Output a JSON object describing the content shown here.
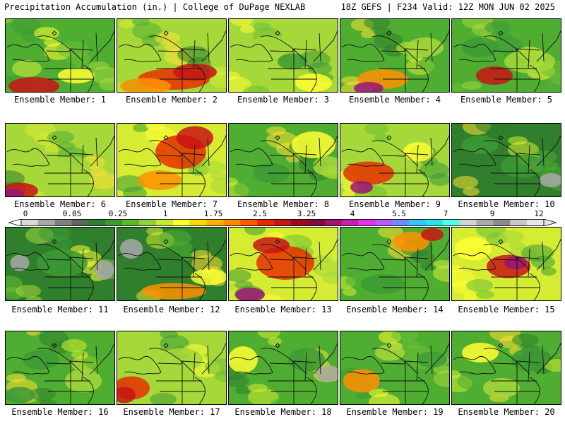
{
  "header": {
    "left": "Precipitation Accumulation (in.) | College of DuPage NEXLAB",
    "right": "18Z GEFS | F234 Valid: 12Z MON JUN 02 2025"
  },
  "colorbar": {
    "tick_labels": [
      "0",
      "0.05",
      "0.25",
      "1",
      "1.75",
      "2.5",
      "3.25",
      "4",
      "5.5",
      "7",
      "9",
      "12"
    ],
    "colors": [
      "#d9d9d9",
      "#a8a8a8",
      "#808080",
      "#5a6a5a",
      "#2e7d32",
      "#3c9a35",
      "#5cb82e",
      "#8fd13a",
      "#c8e832",
      "#ffff33",
      "#ffd700",
      "#ffb000",
      "#ff8800",
      "#ff5a00",
      "#e82800",
      "#c81414",
      "#a00a1e",
      "#800a3c",
      "#a0146e",
      "#c81eb4",
      "#e632e6",
      "#b45aff",
      "#6e8cff",
      "#32c8ff",
      "#28e6e6",
      "#50ffe6",
      "#d2d2d2",
      "#aaaaaa",
      "#8c8c8c",
      "#c8c8c8",
      "#e6e6e6"
    ]
  },
  "members": [
    {
      "label": "Ensemble Member: 1"
    },
    {
      "label": "Ensemble Member: 2"
    },
    {
      "label": "Ensemble Member: 3"
    },
    {
      "label": "Ensemble Member: 4"
    },
    {
      "label": "Ensemble Member: 5"
    },
    {
      "label": "Ensemble Member: 6"
    },
    {
      "label": "Ensemble Member: 7"
    },
    {
      "label": "Ensemble Member: 8"
    },
    {
      "label": "Ensemble Member: 9"
    },
    {
      "label": "Ensemble Member: 10"
    },
    {
      "label": "Ensemble Member: 11"
    },
    {
      "label": "Ensemble Member: 12"
    },
    {
      "label": "Ensemble Member: 13"
    },
    {
      "label": "Ensemble Member: 14"
    },
    {
      "label": "Ensemble Member: 15"
    },
    {
      "label": "Ensemble Member: 16"
    },
    {
      "label": "Ensemble Member: 17"
    },
    {
      "label": "Ensemble Member: 18"
    },
    {
      "label": "Ensemble Member: 19"
    },
    {
      "label": "Ensemble Member: 20"
    }
  ]
}
